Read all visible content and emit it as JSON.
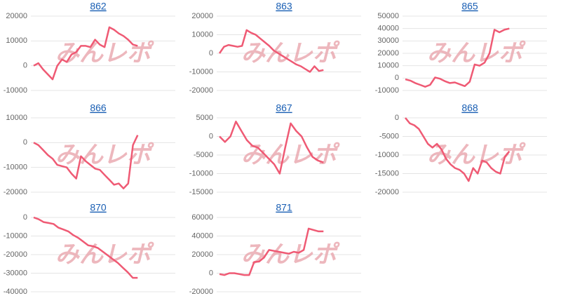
{
  "watermark": "みんレポ",
  "chart_data": [
    {
      "type": "line",
      "title": "862",
      "ylim": [
        -10000,
        20000
      ],
      "yticks": [
        -10000,
        0,
        10000,
        20000
      ],
      "grid": true,
      "color": "#ef5a74",
      "values": [
        0,
        1000,
        -1500,
        -3500,
        -5500,
        0,
        2500,
        1500,
        4500,
        5500,
        8000,
        8000,
        7500,
        10500,
        8500,
        7500,
        15500,
        14500,
        13000,
        12000,
        10500,
        8500,
        8000
      ]
    },
    {
      "type": "line",
      "title": "863",
      "ylim": [
        -20000,
        20000
      ],
      "yticks": [
        -20000,
        -10000,
        0,
        10000,
        20000
      ],
      "grid": true,
      "color": "#ef5a74",
      "values": [
        0,
        3500,
        4500,
        4000,
        3500,
        4000,
        12500,
        11000,
        10000,
        8000,
        6000,
        4000,
        1500,
        0,
        -1500,
        -3000,
        -4500,
        -6000,
        -7000,
        -8500,
        -10000,
        -7000,
        -9500,
        -9000
      ]
    },
    {
      "type": "line",
      "title": "865",
      "ylim": [
        -10000,
        50000
      ],
      "yticks": [
        -10000,
        0,
        10000,
        20000,
        30000,
        40000,
        50000
      ],
      "grid": true,
      "color": "#ef5a74",
      "values": [
        -1000,
        -2000,
        -4000,
        -5500,
        -7000,
        -5500,
        500,
        -500,
        -2500,
        -4000,
        -3500,
        -5000,
        -6500,
        -3000,
        11000,
        10000,
        12500,
        20000,
        39000,
        37000,
        39000,
        40000
      ]
    },
    {
      "type": "line",
      "title": "866",
      "ylim": [
        -20000,
        10000
      ],
      "yticks": [
        -20000,
        -10000,
        0,
        10000
      ],
      "grid": true,
      "color": "#ef5a74",
      "values": [
        0,
        -1000,
        -3000,
        -5000,
        -6500,
        -9000,
        -9500,
        -10000,
        -12500,
        -14500,
        -5500,
        -7500,
        -9000,
        -10500,
        -11000,
        -13000,
        -15000,
        -17000,
        -16500,
        -18500,
        -16500,
        -1000,
        3000
      ]
    },
    {
      "type": "line",
      "title": "867",
      "ylim": [
        -15000,
        5000
      ],
      "yticks": [
        -15000,
        -10000,
        -5000,
        0,
        5000
      ],
      "grid": true,
      "color": "#ef5a74",
      "values": [
        0,
        -1500,
        0,
        4000,
        1500,
        -1000,
        -2500,
        -3000,
        -4500,
        -6000,
        -7500,
        -10000,
        -3000,
        3500,
        1500,
        0,
        -3000,
        -5500,
        -6500,
        -7000
      ]
    },
    {
      "type": "line",
      "title": "868",
      "ylim": [
        -20000,
        0
      ],
      "yticks": [
        -20000,
        -15000,
        -10000,
        -5000,
        0
      ],
      "grid": true,
      "color": "#ef5a74",
      "values": [
        0,
        -1500,
        -2000,
        -3000,
        -5000,
        -7000,
        -8000,
        -7000,
        -8500,
        -11000,
        -12500,
        -13500,
        -14000,
        -15000,
        -17000,
        -13500,
        -15000,
        -11500,
        -12000,
        -13500,
        -14500,
        -15000,
        -10500,
        -9000
      ]
    },
    {
      "type": "line",
      "title": "870",
      "ylim": [
        -40000,
        0
      ],
      "yticks": [
        -40000,
        -30000,
        -20000,
        -10000,
        0
      ],
      "grid": true,
      "color": "#ef5a74",
      "values": [
        0,
        -1000,
        -2500,
        -3000,
        -3500,
        -5500,
        -6500,
        -7500,
        -9500,
        -11000,
        -13000,
        -15000,
        -15500,
        -16500,
        -18500,
        -20500,
        -22500,
        -24500,
        -27000,
        -29500,
        -32500,
        -32500
      ]
    },
    {
      "type": "line",
      "title": "871",
      "ylim": [
        -20000,
        60000
      ],
      "yticks": [
        -20000,
        0,
        20000,
        40000,
        60000
      ],
      "grid": true,
      "color": "#ef5a74",
      "values": [
        -1000,
        -2000,
        0,
        0,
        -1000,
        -2000,
        -2000,
        12000,
        12500,
        17000,
        25000,
        24000,
        23000,
        22000,
        21000,
        23000,
        22000,
        25000,
        48000,
        46500,
        45000,
        45000
      ]
    }
  ]
}
